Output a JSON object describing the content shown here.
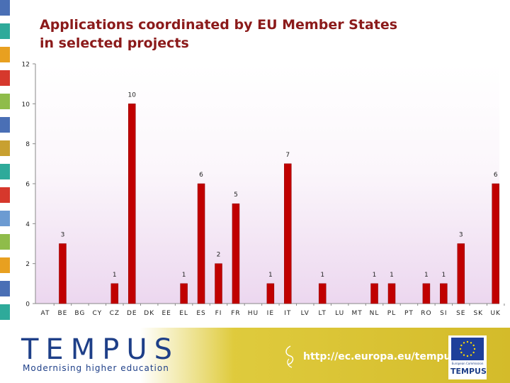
{
  "title_line1": "Applications coordinated by EU Member States",
  "title_line2": "in selected projects",
  "colors": {
    "bar": "#c00000",
    "bar_edge": "#8a0000",
    "title": "#8b1a1a",
    "brand_blue": "#1e3f88",
    "left_blocks": [
      "#4a6fb5",
      "#2eaa9a",
      "#e8a020",
      "#d6382c",
      "#8fbc4a",
      "#4a6fb5",
      "#c8a030",
      "#2eaa9a",
      "#d6382c",
      "#6c9bd2",
      "#8fbc4a",
      "#e8a020",
      "#4a6fb5",
      "#2eaa9a"
    ]
  },
  "chart_data": {
    "type": "bar",
    "title": "Applications coordinated by EU Member States in selected projects",
    "xlabel": "",
    "ylabel": "",
    "ylim": [
      0,
      12
    ],
    "yticks": [
      0,
      2,
      4,
      6,
      8,
      10,
      12
    ],
    "grid": false,
    "categories": [
      "AT",
      "BE",
      "BG",
      "CY",
      "CZ",
      "DE",
      "DK",
      "EE",
      "EL",
      "ES",
      "FI",
      "FR",
      "HU",
      "IE",
      "IT",
      "LV",
      "LT",
      "LU",
      "MT",
      "NL",
      "PL",
      "PT",
      "RO",
      "SI",
      "SE",
      "SK",
      "UK"
    ],
    "values": [
      0,
      3,
      0,
      0,
      1,
      10,
      0,
      0,
      1,
      6,
      2,
      5,
      0,
      1,
      7,
      0,
      1,
      0,
      0,
      1,
      1,
      0,
      1,
      1,
      3,
      0,
      6
    ]
  },
  "footer": {
    "logo": "TEMPUS",
    "tagline": "Modernising higher education",
    "url": "http://ec.europa.eu/tempus",
    "eu_caption": "European Commission",
    "eu_logo": "TEMPUS"
  }
}
